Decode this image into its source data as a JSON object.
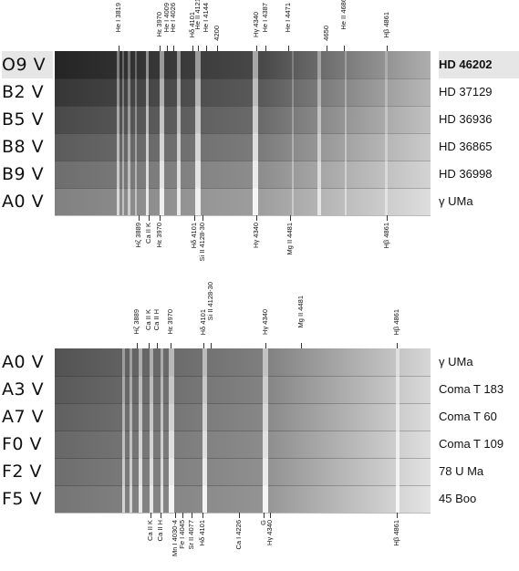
{
  "top": {
    "rows": [
      {
        "cls": "O9 V",
        "star": "HD 46202",
        "highlight": true
      },
      {
        "cls": "B2 V",
        "star": "HD 37129",
        "highlight": false
      },
      {
        "cls": "B5 V",
        "star": "HD 36936",
        "highlight": false
      },
      {
        "cls": "B8 V",
        "star": "HD 36865",
        "highlight": false
      },
      {
        "cls": "B9 V",
        "star": "HD 36998",
        "highlight": false
      },
      {
        "cls": "A0 V",
        "star": "γ UMa",
        "highlight": false
      }
    ],
    "lines_above": [
      "He I 3819",
      "Hε 3970",
      "He I 4009",
      "He I 4026",
      "Hδ 4101",
      "He II 4121",
      "He I 4144",
      "4200",
      "Hγ 4340",
      "He I 4387",
      "He I 4471",
      "4650",
      "He II 4686",
      "Hβ 4861"
    ],
    "lines_below": [
      "Hζ 3889",
      "Ca II K",
      "Hε 3970",
      "Hδ 4101",
      "Si II 4128-30",
      "Hγ 4340",
      "Mg II 4481",
      "Hβ 4861"
    ]
  },
  "bottom": {
    "rows": [
      {
        "cls": "A0 V",
        "star": "γ UMa",
        "highlight": false
      },
      {
        "cls": "A3 V",
        "star": "Coma T 183",
        "highlight": false
      },
      {
        "cls": "A7 V",
        "star": "Coma T 60",
        "highlight": false
      },
      {
        "cls": "F0 V",
        "star": "Coma T 109",
        "highlight": false
      },
      {
        "cls": "F2 V",
        "star": "78 U Ma",
        "highlight": false
      },
      {
        "cls": "F5 V",
        "star": "45 Boo",
        "highlight": false
      }
    ],
    "lines_above": [
      "Hζ 3889",
      "Ca II K",
      "Ca II H",
      "Hε 3970",
      "Hδ 4101",
      "Si II 4128-30",
      "Hγ 4340",
      "Mg II 4481",
      "Hβ 4861"
    ],
    "lines_below": [
      "Ca II K",
      "Ca II H",
      "Mn I 4030-4",
      "Fe I 4045",
      "Sr II 4077",
      "Hδ 4101",
      "Ca I 4226",
      "G",
      "Hγ 4340",
      "Hβ 4861"
    ]
  },
  "colors": {
    "background": "#ffffff",
    "ink": "#111111",
    "highlight": "#e6e6e6"
  }
}
